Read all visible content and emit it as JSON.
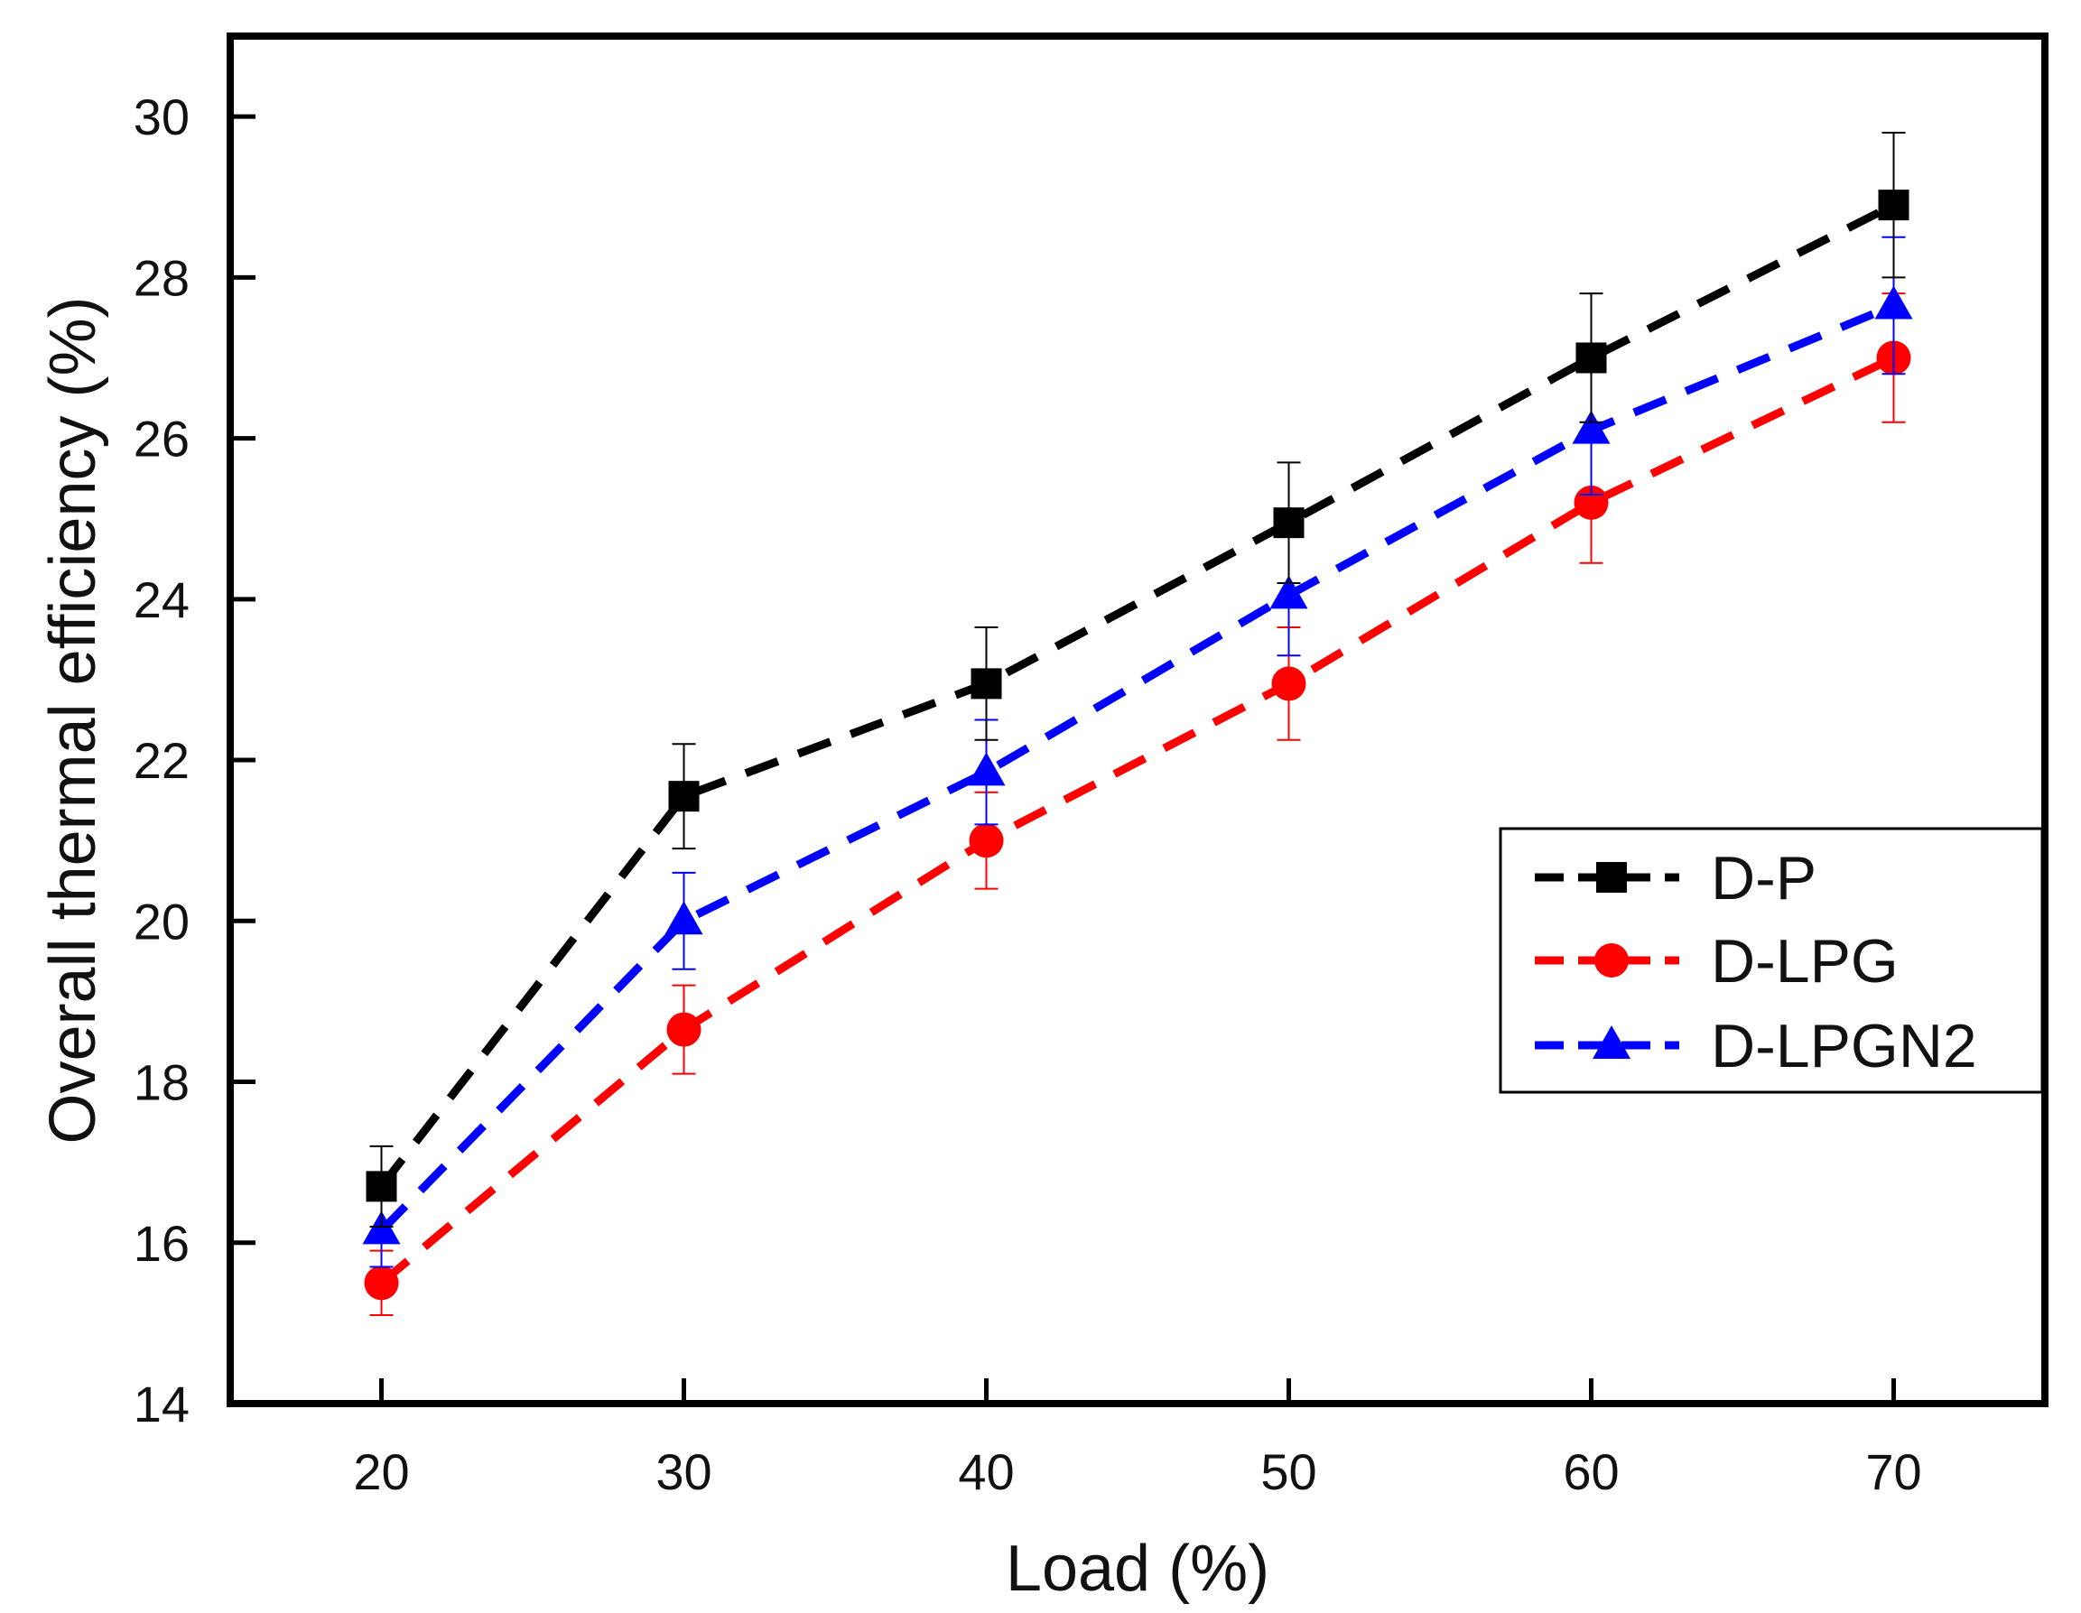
{
  "chart_data": {
    "type": "line",
    "title": "",
    "xlabel": "Load (%)",
    "ylabel": "Overall thermal efficiency (%)",
    "x": [
      20,
      30,
      40,
      50,
      60,
      70
    ],
    "x_ticks": [
      "20",
      "30",
      "40",
      "50",
      "60",
      "70"
    ],
    "xlim": [
      15,
      75
    ],
    "ylim": [
      14,
      31
    ],
    "y_ticks": [
      "14",
      "16",
      "18",
      "20",
      "22",
      "24",
      "26",
      "28",
      "30"
    ],
    "grid": false,
    "legend_position": "center-right",
    "series": [
      {
        "name": "D-P",
        "color": "#000000",
        "marker": "square",
        "line_style": "dashed",
        "values": [
          16.7,
          21.55,
          22.95,
          24.95,
          27.0,
          28.9
        ],
        "error_up": [
          0.5,
          0.65,
          0.7,
          0.75,
          0.8,
          0.9
        ],
        "error_down": [
          0.5,
          0.65,
          0.7,
          0.75,
          0.8,
          0.9
        ]
      },
      {
        "name": "D-LPG",
        "color": "#ff0000",
        "marker": "circle",
        "line_style": "dashed",
        "values": [
          15.5,
          18.65,
          21.0,
          22.95,
          25.2,
          27.0
        ],
        "error_up": [
          0.4,
          0.55,
          0.6,
          0.7,
          0.75,
          0.8
        ],
        "error_down": [
          0.4,
          0.55,
          0.6,
          0.7,
          0.75,
          0.8
        ]
      },
      {
        "name": "D-LPGN2",
        "color": "#0000ff",
        "marker": "triangle",
        "line_style": "dashed",
        "values": [
          16.15,
          20.0,
          21.85,
          24.05,
          26.1,
          27.65
        ],
        "error_up": [
          0.45,
          0.6,
          0.65,
          0.75,
          0.8,
          0.85
        ],
        "error_down": [
          0.45,
          0.6,
          0.65,
          0.75,
          0.8,
          0.85
        ]
      }
    ]
  }
}
